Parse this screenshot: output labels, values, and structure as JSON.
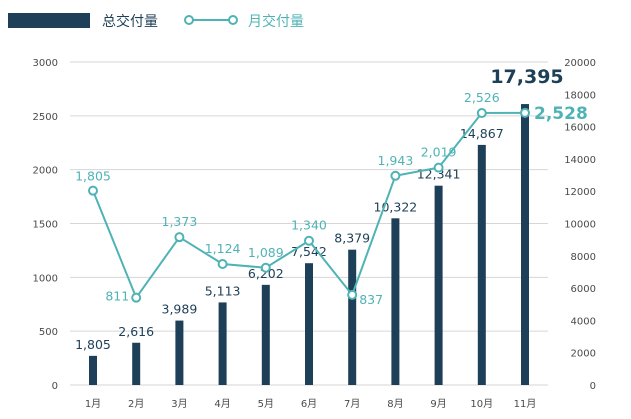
{
  "colors": {
    "bar": "#1d3f57",
    "line": "#4fb3b6",
    "grid": "#d6d6d6",
    "axis_text": "#4a4a4a"
  },
  "chart_data": {
    "type": "bar",
    "title": "",
    "categories": [
      "1月",
      "2月",
      "3月",
      "4月",
      "5月",
      "6月",
      "7月",
      "8月",
      "9月",
      "10月",
      "11月"
    ],
    "series": [
      {
        "name": "总交付量",
        "type": "bar",
        "axis": "right",
        "values": [
          1805,
          2616,
          3989,
          5113,
          6202,
          7542,
          8379,
          10322,
          12341,
          14867,
          17395
        ],
        "labels": [
          "1,805",
          "2,616",
          "3,989",
          "5,113",
          "6,202",
          "7,542",
          "8,379",
          "10,322",
          "12,341",
          "14,867",
          "17,395"
        ]
      },
      {
        "name": "月交付量",
        "type": "line",
        "axis": "left",
        "values": [
          1805,
          811,
          1373,
          1124,
          1089,
          1340,
          837,
          1943,
          2019,
          2526,
          2528
        ],
        "labels": [
          "1,805",
          "811",
          "1,373",
          "1,124",
          "1,089",
          "1,340",
          "837",
          "1,943",
          "2,019",
          "2,526",
          "2,528"
        ]
      }
    ],
    "left_axis": {
      "ylim": [
        0,
        3000
      ],
      "ticks": [
        "0",
        "500",
        "1000",
        "1500",
        "2000",
        "2500",
        "3000"
      ]
    },
    "right_axis": {
      "ylim": [
        0,
        20000
      ],
      "ticks": [
        "0",
        "2000",
        "4000",
        "6000",
        "8000",
        "10000",
        "12000",
        "14000",
        "16000",
        "18000",
        "20000"
      ]
    },
    "grid": true,
    "legend_position": "top-left"
  }
}
